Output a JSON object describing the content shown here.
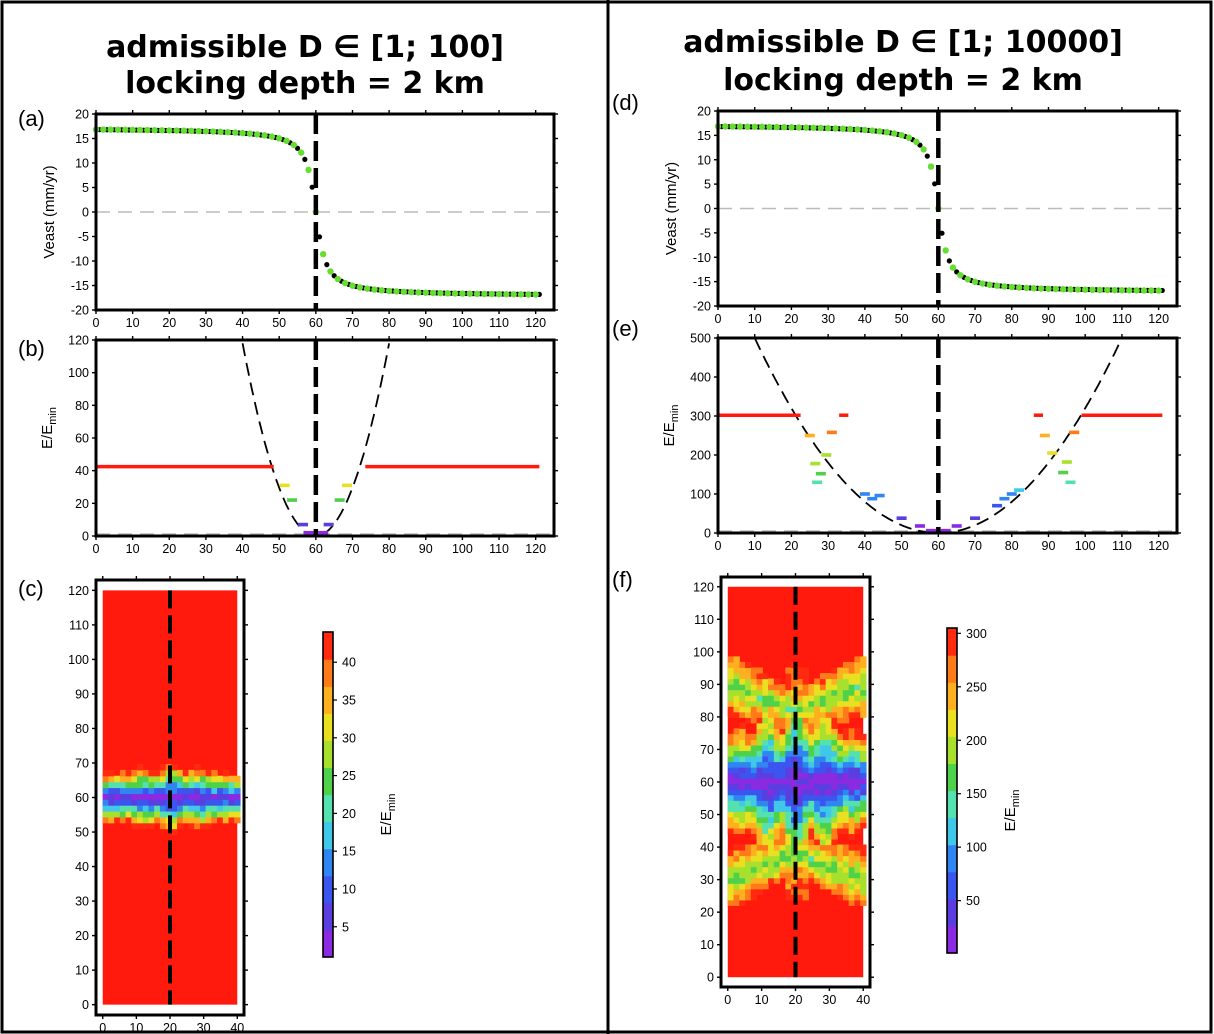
{
  "colors": {
    "data_obs": "#000000",
    "data_model": "#66dd33",
    "ceiling": "#ff1a0d",
    "grid_dash": "#bbbbbb",
    "fault_line": "#000000"
  },
  "colormap": [
    "#8a2be2",
    "#5a3ee0",
    "#3b55ee",
    "#2f86f0",
    "#40c8e8",
    "#55e0b0",
    "#4fd24a",
    "#a8e02e",
    "#e8e020",
    "#ffb020",
    "#ff7a18",
    "#ff2a10"
  ],
  "columns": [
    {
      "title_line1": "admissible D ∈ [1; 100]",
      "title_line2": "locking depth = 2 km"
    },
    {
      "title_line1": "admissible D ∈ [1; 10000]",
      "title_line2": "locking depth = 2 km"
    }
  ],
  "chart_data": [
    {
      "panel": "(a)",
      "type": "scatter",
      "ylabel": "Veast (mm/yr)",
      "xlim": [
        0,
        125
      ],
      "ylim": [
        -20,
        20
      ],
      "xticks": [
        0,
        10,
        20,
        30,
        40,
        50,
        60,
        70,
        80,
        90,
        100,
        110,
        120
      ],
      "yticks": [
        -20,
        -15,
        -10,
        -5,
        0,
        5,
        10,
        15,
        20
      ],
      "fault_x": 60,
      "series": [],
      "velocity_curve": {
        "amplitude_mm_yr": 17.2,
        "fault_x": 60,
        "locking_depth_km": 2,
        "x_min": 0,
        "x_max": 120
      }
    },
    {
      "panel": "(b)",
      "type": "scatter",
      "ylabel": "E/E",
      "ylabel_sub": "min",
      "xlim": [
        0,
        125
      ],
      "ylim": [
        0,
        120
      ],
      "xticks": [
        0,
        10,
        20,
        30,
        40,
        50,
        60,
        70,
        80,
        90,
        100,
        110,
        120
      ],
      "yticks": [
        0,
        20,
        40,
        60,
        80,
        100,
        120
      ],
      "fault_x": 60,
      "ceiling": 42.5,
      "ceiling_segments": [
        [
          0,
          48.5
        ],
        [
          73.5,
          121
        ]
      ],
      "parabola": {
        "vertex_x": 60,
        "coefficient": 0.295
      },
      "points": [
        {
          "x": 51.5,
          "y": 31
        },
        {
          "x": 53.5,
          "y": 22
        },
        {
          "x": 66.5,
          "y": 22
        },
        {
          "x": 68.5,
          "y": 31
        },
        {
          "x": 56.5,
          "y": 7
        },
        {
          "x": 63.5,
          "y": 7
        },
        {
          "x": 58,
          "y": 2
        },
        {
          "x": 62,
          "y": 2
        },
        {
          "x": 60,
          "y": 0.5
        }
      ]
    },
    {
      "panel": "(c)",
      "type": "heatmap",
      "cbar_label": "E/E",
      "cbar_label_sub": "min",
      "xlim": [
        -2,
        42
      ],
      "ylim": [
        -3,
        123
      ],
      "xticks": [
        0,
        10,
        20,
        30,
        40
      ],
      "yticks": [
        0,
        10,
        20,
        30,
        40,
        50,
        60,
        70,
        80,
        90,
        100,
        110,
        120
      ],
      "cbar_range": [
        1,
        44
      ],
      "cbar_ticks": [
        5,
        10,
        15,
        20,
        25,
        30,
        35,
        40
      ],
      "fault_x": 20,
      "field_bounds": {
        "x": [
          0,
          40
        ],
        "y": [
          0,
          120
        ]
      },
      "central_band": {
        "center_y": 60,
        "half_width": 7,
        "spread_variation": 0.5
      },
      "colorbar_values": [
        2,
        5,
        9,
        13,
        17,
        21,
        25,
        29,
        33,
        37,
        41,
        44
      ]
    },
    {
      "panel": "(d)",
      "type": "scatter",
      "ylabel": "Veast (mm/yr)",
      "xlim": [
        0,
        125
      ],
      "ylim": [
        -20,
        20
      ],
      "xticks": [
        0,
        10,
        20,
        30,
        40,
        50,
        60,
        70,
        80,
        90,
        100,
        110,
        120
      ],
      "yticks": [
        -20,
        -15,
        -10,
        -5,
        0,
        5,
        10,
        15,
        20
      ],
      "fault_x": 60,
      "series": [],
      "velocity_curve": {
        "amplitude_mm_yr": 17.2,
        "fault_x": 60,
        "locking_depth_km": 2,
        "x_min": 0,
        "x_max": 120
      }
    },
    {
      "panel": "(e)",
      "type": "scatter",
      "ylabel": "E/E",
      "ylabel_sub": "min",
      "xlim": [
        0,
        125
      ],
      "ylim": [
        0,
        500
      ],
      "xticks": [
        0,
        10,
        20,
        30,
        40,
        50,
        60,
        70,
        80,
        90,
        100,
        110,
        120
      ],
      "yticks": [
        0,
        100,
        200,
        300,
        400,
        500
      ],
      "fault_x": 60,
      "ceiling": 302,
      "ceiling_segments": [
        [
          0,
          22.5
        ],
        [
          33,
          35.5
        ],
        [
          86,
          88.5
        ],
        [
          99,
          121
        ]
      ],
      "parabola": {
        "vertex_x": 60,
        "coefficient": 0.2
      },
      "points": [
        {
          "x": 25,
          "y": 250
        },
        {
          "x": 31,
          "y": 258
        },
        {
          "x": 26.5,
          "y": 178
        },
        {
          "x": 29.5,
          "y": 200
        },
        {
          "x": 28,
          "y": 152
        },
        {
          "x": 27,
          "y": 130
        },
        {
          "x": 40,
          "y": 100
        },
        {
          "x": 44,
          "y": 96
        },
        {
          "x": 42,
          "y": 88
        },
        {
          "x": 50,
          "y": 38
        },
        {
          "x": 55,
          "y": 18
        },
        {
          "x": 58,
          "y": 6
        },
        {
          "x": 62,
          "y": 6
        },
        {
          "x": 65,
          "y": 18
        },
        {
          "x": 70,
          "y": 38
        },
        {
          "x": 76,
          "y": 70
        },
        {
          "x": 78,
          "y": 88
        },
        {
          "x": 80,
          "y": 100
        },
        {
          "x": 82,
          "y": 110
        },
        {
          "x": 91,
          "y": 205
        },
        {
          "x": 95,
          "y": 182
        },
        {
          "x": 94,
          "y": 155
        },
        {
          "x": 96,
          "y": 130
        },
        {
          "x": 89,
          "y": 250
        },
        {
          "x": 97,
          "y": 258
        },
        {
          "x": 60,
          "y": 1
        }
      ]
    },
    {
      "panel": "(f)",
      "type": "heatmap",
      "cbar_label": "E/E",
      "cbar_label_sub": "min",
      "xlim": [
        -2,
        42
      ],
      "ylim": [
        -3,
        123
      ],
      "xticks": [
        0,
        10,
        20,
        30,
        40
      ],
      "yticks": [
        0,
        10,
        20,
        30,
        40,
        50,
        60,
        70,
        80,
        90,
        100,
        110,
        120
      ],
      "cbar_range": [
        1,
        305
      ],
      "cbar_ticks": [
        50,
        100,
        150,
        200,
        250,
        300
      ],
      "fault_x": 20,
      "field_bounds": {
        "x": [
          0,
          40
        ],
        "y": [
          0,
          120
        ]
      },
      "central_band": {
        "center_y": 60,
        "half_width": 14,
        "spread_variation": 1.6
      },
      "colorbar_values": [
        10,
        35,
        60,
        90,
        115,
        140,
        170,
        200,
        225,
        255,
        280,
        305
      ]
    }
  ]
}
